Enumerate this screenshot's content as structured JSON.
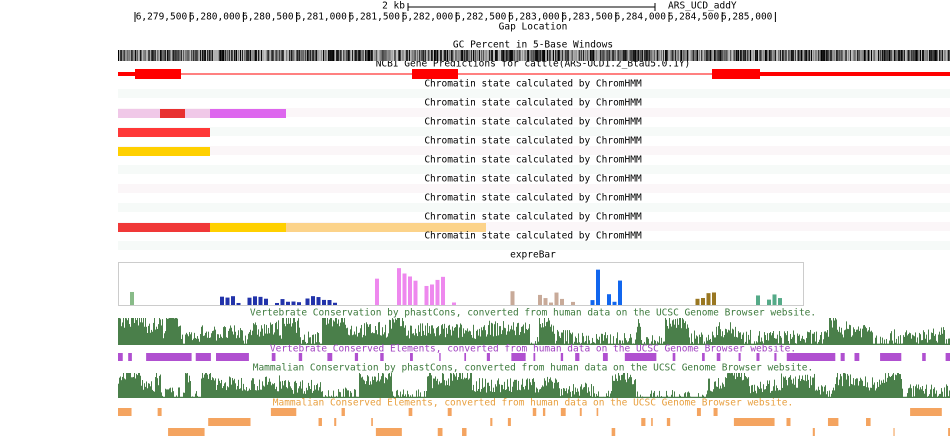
{
  "ruler": {
    "scale_label": "2 kb",
    "assembly": "ARS_UCD_addY",
    "positions": [
      "6,279,500",
      "6,280,000",
      "6,280,500",
      "6,281,000",
      "6,281,500",
      "6,282,000",
      "6,282,500",
      "6,283,000",
      "6,283,500",
      "6,284,000",
      "6,284,500",
      "6,285,000"
    ]
  },
  "tracks": {
    "gap": "Gap Location",
    "gc": "GC Percent in 5-Base Windows",
    "gene": "NCBI Gene Predictions for cattle(ARS-UCD1.2_Btau5.0.1Y)",
    "chromatin": [
      "Chromatin state calculated by ChromHMM",
      "Chromatin state calculated by ChromHMM",
      "Chromatin state calculated by ChromHMM",
      "Chromatin state calculated by ChromHMM",
      "Chromatin state calculated by ChromHMM",
      "Chromatin state calculated by ChromHMM",
      "Chromatin state calculated by ChromHMM",
      "Chromatin state calculated by ChromHMM",
      "Chromatin state calculated by ChromHMM"
    ],
    "expression": "expreBar",
    "vert_cons": "Vertebrate Conservation by phastCons, converted from human data on the UCSC Genome Browser website.",
    "vert_elements": "Vertebrate Conserved Elements, converted from human data on the UCSC Genome Browser website.",
    "mamm_cons": "Mammalian Conservation by phastCons, converted from human data on the UCSC Genome Browser website.",
    "mamm_elements": "Mammalian Conserved Elements, converted from human data on the UCSC Genome Browser website."
  }
}
